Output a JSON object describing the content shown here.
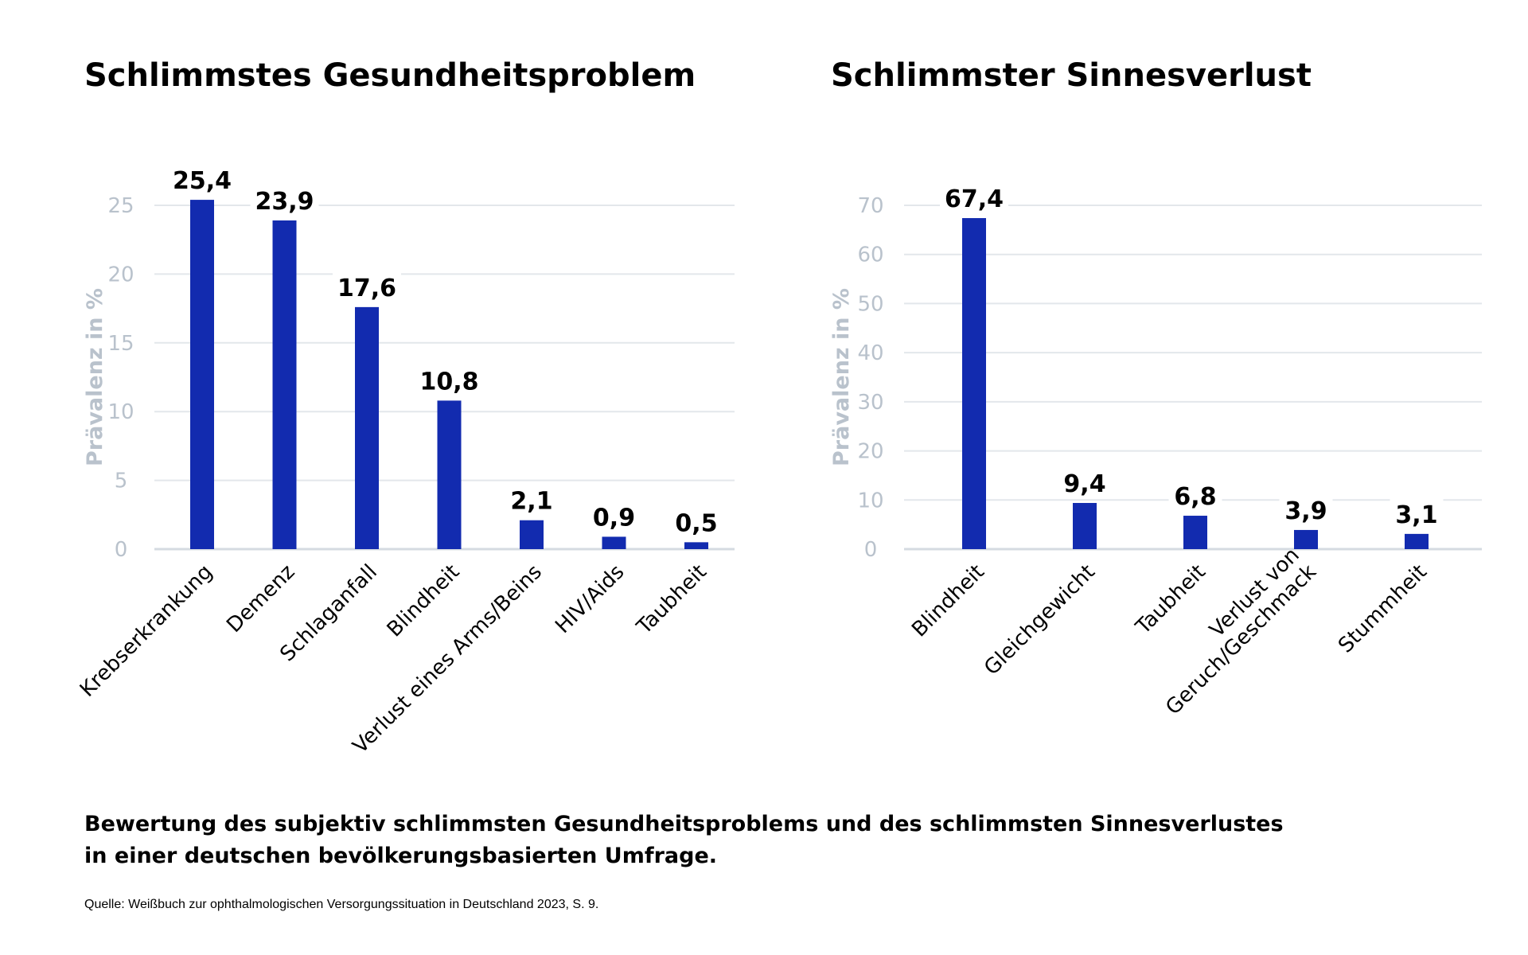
{
  "chart_data": [
    {
      "type": "bar",
      "title": "Schlimmstes Gesundheitsproblem",
      "ylabel": "Prävalenz in %",
      "xlabel": "",
      "ylim": [
        0,
        25
      ],
      "yticks": [
        0,
        5,
        10,
        15,
        20,
        25
      ],
      "categories": [
        "Krebserkrankung",
        "Demenz",
        "Schlaganfall",
        "Blindheit",
        "Verlust eines Arms/Beins",
        "HIV/Aids",
        "Taubheit"
      ],
      "values": [
        25.4,
        23.9,
        17.6,
        10.8,
        2.1,
        0.9,
        0.5
      ],
      "data_labels": [
        "25,4",
        "23,9",
        "17,6",
        "10,8",
        "2,1",
        "0,9",
        "0,5"
      ],
      "bar_color": "#122baf",
      "grid": true
    },
    {
      "type": "bar",
      "title": "Schlimmster Sinnesverlust",
      "ylabel": "Prävalenz in %",
      "xlabel": "",
      "ylim": [
        0,
        70
      ],
      "yticks": [
        0,
        10,
        20,
        30,
        40,
        50,
        60,
        70
      ],
      "categories": [
        "Blindheit",
        "Gleichgewicht",
        "Taubheit",
        [
          "Verlust von",
          "Geruch/Geschmack"
        ],
        "Stummheit"
      ],
      "values": [
        67.4,
        9.4,
        6.8,
        3.9,
        3.1
      ],
      "data_labels": [
        "67,4",
        "9,4",
        "6,8",
        "3,9",
        "3,1"
      ],
      "bar_color": "#122baf",
      "grid": true
    }
  ],
  "caption": {
    "line1": "Bewertung des subjektiv schlimmsten Gesundheitsproblems und des schlimmsten Sinnesverlustes",
    "line2": "in einer deutschen bevölkerungsbasierten Umfrage."
  },
  "source": "Quelle: Weißbuch zur ophthalmologischen Versorgungssituation in Deutschland 2023, S. 9.",
  "colors": {
    "bar": "#122baf",
    "grid": "#e3e7eb",
    "axis_text": "#b9c2cc"
  }
}
